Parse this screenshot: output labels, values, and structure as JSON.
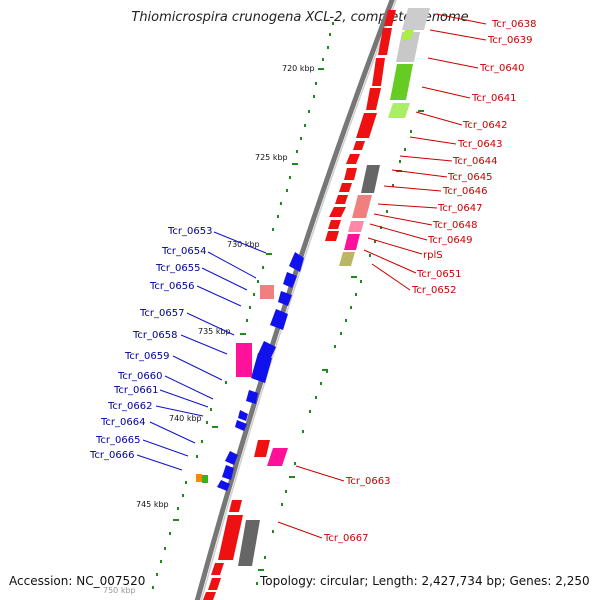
{
  "title": "Thiomicrospira crunogena XCL-2, complete genome",
  "accession": "Accession: NC_007520",
  "topology": "Topology: circular; Length: 2,427,734 bp; Genes: 2,250",
  "scale_labels": [
    {
      "id": "720",
      "text": "720 kbp"
    },
    {
      "id": "725",
      "text": "725 kbp"
    },
    {
      "id": "730",
      "text": "730 kbp"
    },
    {
      "id": "735",
      "text": "735 kbp"
    },
    {
      "id": "740",
      "text": "740 kbp"
    },
    {
      "id": "745",
      "text": "745 kbp"
    },
    {
      "id": "750",
      "text": "750 kbp"
    }
  ],
  "right_genes": [
    {
      "id": "0638",
      "text": "Tcr_0638"
    },
    {
      "id": "0639",
      "text": "Tcr_0639"
    },
    {
      "id": "0640",
      "text": "Tcr_0640"
    },
    {
      "id": "0641",
      "text": "Tcr_0641"
    },
    {
      "id": "0642",
      "text": "Tcr_0642"
    },
    {
      "id": "0643",
      "text": "Tcr_0643"
    },
    {
      "id": "0644",
      "text": "Tcr_0644"
    },
    {
      "id": "0645",
      "text": "Tcr_0645"
    },
    {
      "id": "0646",
      "text": "Tcr_0646"
    },
    {
      "id": "0647",
      "text": "Tcr_0647"
    },
    {
      "id": "0648",
      "text": "Tcr_0648"
    },
    {
      "id": "0649",
      "text": "Tcr_0649"
    },
    {
      "id": "rpls",
      "text": "rplS"
    },
    {
      "id": "0651",
      "text": "Tcr_0651"
    },
    {
      "id": "0652",
      "text": "Tcr_0652"
    },
    {
      "id": "0663",
      "text": "Tcr_0663"
    },
    {
      "id": "0667",
      "text": "Tcr_0667"
    }
  ],
  "left_genes": [
    {
      "id": "0653",
      "text": "Tcr_0653"
    },
    {
      "id": "0654",
      "text": "Tcr_0654"
    },
    {
      "id": "0655",
      "text": "Tcr_0655"
    },
    {
      "id": "0656",
      "text": "Tcr_0656"
    },
    {
      "id": "0657",
      "text": "Tcr_0657"
    },
    {
      "id": "0658",
      "text": "Tcr_0658"
    },
    {
      "id": "0659",
      "text": "Tcr_0659"
    },
    {
      "id": "0660",
      "text": "Tcr_0660"
    },
    {
      "id": "0661",
      "text": "Tcr_0661"
    },
    {
      "id": "0662",
      "text": "Tcr_0662"
    },
    {
      "id": "0664",
      "text": "Tcr_0664"
    },
    {
      "id": "0665",
      "text": "Tcr_0665"
    },
    {
      "id": "0666",
      "text": "Tcr_0666"
    }
  ],
  "colors": {
    "forward_gene": "#ee1111",
    "reverse_gene": "#1111ee",
    "right_label": "#cc0000",
    "left_label": "#000099",
    "backbone": "#777777",
    "tick": "#228822"
  }
}
